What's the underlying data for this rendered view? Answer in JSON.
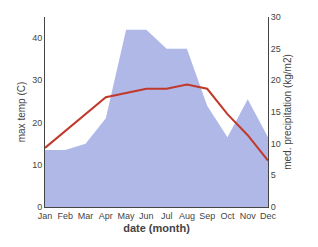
{
  "chart_data": {
    "type": "line",
    "xlabel": "date (month)",
    "ylabel": "max temp (C)",
    "y2label": "med. precipitation (kg/m2)",
    "categories": [
      "Jan",
      "Feb",
      "Mar",
      "Apr",
      "May",
      "Jun",
      "Jul",
      "Aug",
      "Sep",
      "Oct",
      "Nov",
      "Dec"
    ],
    "series": [
      {
        "type": "area",
        "axis": "y2",
        "color": "#b0b8e8",
        "values": [
          9,
          9,
          10,
          14,
          28,
          28,
          25,
          25,
          16,
          11,
          17,
          11
        ]
      },
      {
        "type": "line",
        "color": "#c0392b",
        "values": [
          14,
          18,
          22,
          26,
          27,
          28,
          28,
          29,
          28,
          22,
          17,
          11
        ]
      }
    ],
    "ylim": [
      0,
      45
    ],
    "yticks": [
      0,
      10,
      20,
      30,
      40
    ],
    "y2lim": [
      0,
      30
    ],
    "y2ticks": [
      0,
      5,
      10,
      15,
      20,
      25,
      30
    ],
    "grid": false
  }
}
